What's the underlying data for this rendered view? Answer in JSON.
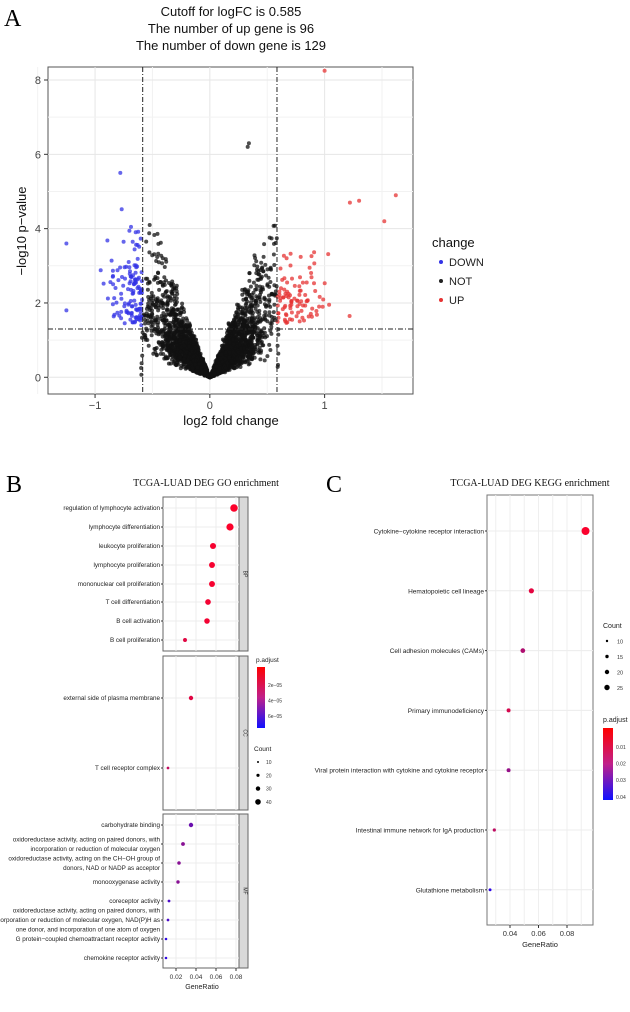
{
  "panels": {
    "a": "A",
    "b": "B",
    "c": "C"
  },
  "chart_data": [
    {
      "type": "scatter",
      "name": "volcano",
      "title_lines": [
        "Cutoff for logFC is 0.585",
        "The number of up gene is 96",
        "The number of down gene is 129"
      ],
      "xlabel": "log2 fold change",
      "ylabel": "−log10 p−value",
      "xlim": [
        -1.41,
        1.77
      ],
      "ylim": [
        -0.45,
        8.35
      ],
      "xticks": [
        -1,
        0,
        1
      ],
      "xtick_labels": [
        "−1",
        "0",
        "1"
      ],
      "yticks": [
        0,
        2,
        4,
        6,
        8
      ],
      "ytick_labels": [
        "0",
        "2",
        "4",
        "6",
        "8"
      ],
      "cutoff_logfc": 0.585,
      "cutoff_p_line": 1.3,
      "up_count": 96,
      "down_count": 129,
      "not_count_drawn": 3200,
      "legend": {
        "title": "change",
        "position": "right",
        "items": [
          {
            "label": "DOWN",
            "color": "#3333e6"
          },
          {
            "label": "NOT",
            "color": "#222222"
          },
          {
            "label": "UP",
            "color": "#e63333"
          }
        ]
      },
      "notable_points": [
        {
          "x": 1.0,
          "y": 8.25,
          "group": "UP"
        },
        {
          "x": 0.33,
          "y": 6.2,
          "group": "NOT"
        },
        {
          "x": 0.34,
          "y": 6.3,
          "group": "NOT"
        },
        {
          "x": -0.78,
          "y": 5.5,
          "group": "DOWN"
        },
        {
          "x": -1.25,
          "y": 3.6,
          "group": "DOWN"
        },
        {
          "x": -1.25,
          "y": 1.8,
          "group": "DOWN"
        },
        {
          "x": 1.62,
          "y": 4.9,
          "group": "UP"
        },
        {
          "x": 1.3,
          "y": 4.75,
          "group": "UP"
        },
        {
          "x": 1.22,
          "y": 4.7,
          "group": "UP"
        },
        {
          "x": 1.52,
          "y": 4.2,
          "group": "UP"
        }
      ]
    },
    {
      "type": "scatter",
      "name": "go-dotplot",
      "title": "TCGA-LUAD DEG GO enrichment",
      "xlabel": "GeneRatio",
      "xticks": [
        0.02,
        0.04,
        0.06,
        0.08
      ],
      "xtick_labels": [
        "0.02",
        "0.04",
        "0.06",
        "0.08"
      ],
      "facets": [
        {
          "label": "BP",
          "terms": [
            {
              "term": "regulation of lymphocyte activation",
              "ratio": 0.078,
              "count": 40,
              "padj": 1e-06
            },
            {
              "term": "lymphocyte differentiation",
              "ratio": 0.074,
              "count": 38,
              "padj": 1e-06
            },
            {
              "term": "leukocyte proliferation",
              "ratio": 0.057,
              "count": 30,
              "padj": 3e-06
            },
            {
              "term": "lymphocyte proliferation",
              "ratio": 0.056,
              "count": 29,
              "padj": 3e-06
            },
            {
              "term": "mononuclear cell proliferation",
              "ratio": 0.056,
              "count": 29,
              "padj": 3e-06
            },
            {
              "term": "T cell differentiation",
              "ratio": 0.052,
              "count": 27,
              "padj": 4e-06
            },
            {
              "term": "B cell activation",
              "ratio": 0.051,
              "count": 26,
              "padj": 4e-06
            },
            {
              "term": "B cell proliferation",
              "ratio": 0.029,
              "count": 15,
              "padj": 1e-05
            }
          ]
        },
        {
          "label": "CC",
          "terms": [
            {
              "term": "external side of plasma membrane",
              "ratio": 0.035,
              "count": 18,
              "padj": 1e-05
            },
            {
              "term": "T cell receptor complex",
              "ratio": 0.012,
              "count": 6,
              "padj": 2e-05
            }
          ]
        },
        {
          "label": "MF",
          "terms": [
            {
              "term": "carbohydrate binding",
              "ratio": 0.035,
              "count": 18,
              "padj": 5e-05
            },
            {
              "term": "oxidoreductase activity, acting on paired donors, with|incorporation or reduction of molecular oxygen",
              "ratio": 0.027,
              "count": 14,
              "padj": 4e-05
            },
            {
              "term": "oxidoreductase activity, acting on the CH−OH group of|donors, NAD or NADP as acceptor",
              "ratio": 0.023,
              "count": 12,
              "padj": 4e-05
            },
            {
              "term": "monooxygenase activity",
              "ratio": 0.022,
              "count": 11,
              "padj": 4e-05
            },
            {
              "term": "coreceptor activity",
              "ratio": 0.013,
              "count": 7,
              "padj": 6e-05
            },
            {
              "term": "oxidoreductase activity, acting on paired donors, with|incorporation or reduction of molecular oxygen, NAD(P)H as|one donor, and incorporation of one atom of oxygen",
              "ratio": 0.012,
              "count": 6,
              "padj": 6e-05
            },
            {
              "term": "G protein−coupled chemoattractant receptor activity",
              "ratio": 0.01,
              "count": 5,
              "padj": 7e-05
            },
            {
              "term": "chemokine receptor activity",
              "ratio": 0.01,
              "count": 5,
              "padj": 7e-05
            }
          ]
        }
      ],
      "legend_padj": {
        "title": "p.adjust",
        "ticks": [
          "2e−05",
          "4e−05",
          "6e−05"
        ]
      },
      "legend_count": {
        "title": "Count",
        "items": [
          "10",
          "20",
          "30",
          "40"
        ]
      }
    },
    {
      "type": "scatter",
      "name": "kegg-dotplot",
      "title": "TCGA-LUAD DEG KEGG enrichment",
      "xlabel": "GeneRatio",
      "xticks": [
        0.04,
        0.06,
        0.08
      ],
      "xtick_labels": [
        "0.04",
        "0.06",
        "0.08"
      ],
      "terms": [
        {
          "term": "Cytokine−cytokine receptor interaction",
          "ratio": 0.093,
          "count": 27,
          "padj": 0.001
        },
        {
          "term": "Hematopoietic cell lineage",
          "ratio": 0.055,
          "count": 16,
          "padj": 0.005
        },
        {
          "term": "Cell adhesion molecules (CAMs)",
          "ratio": 0.049,
          "count": 14,
          "padj": 0.015
        },
        {
          "term": "Primary immunodeficiency",
          "ratio": 0.039,
          "count": 11,
          "padj": 0.008
        },
        {
          "term": "Viral protein interaction with cytokine and cytokine receptor",
          "ratio": 0.039,
          "count": 11,
          "padj": 0.02
        },
        {
          "term": "Intestinal immune network for IgA production",
          "ratio": 0.029,
          "count": 8,
          "padj": 0.012
        },
        {
          "term": "Glutathione metabolism",
          "ratio": 0.026,
          "count": 7,
          "padj": 0.04
        }
      ],
      "legend_count": {
        "title": "Count",
        "items": [
          "10",
          "15",
          "20",
          "25"
        ]
      },
      "legend_padj": {
        "title": "p.adjust",
        "ticks": [
          "0.01",
          "0.02",
          "0.03",
          "0.04"
        ]
      }
    }
  ]
}
